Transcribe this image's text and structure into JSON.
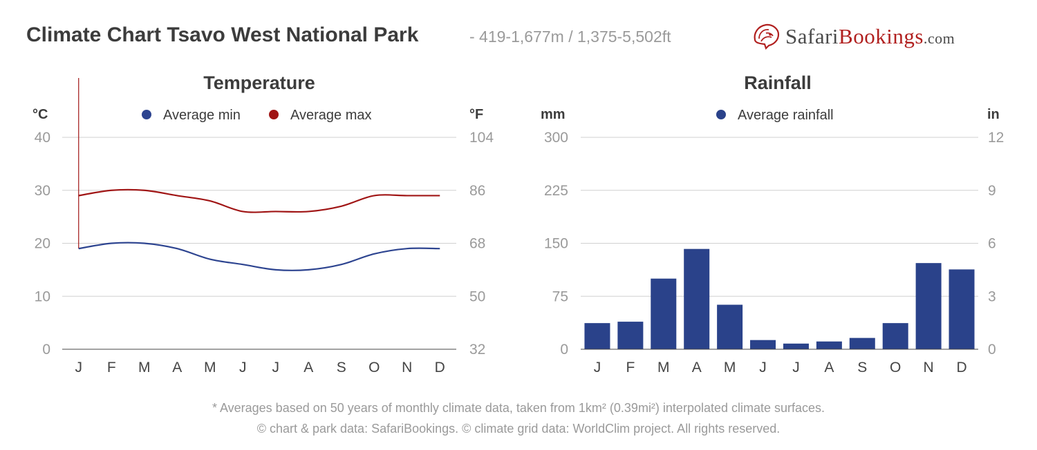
{
  "header": {
    "title": "Climate Chart Tsavo West National Park",
    "subtitle": "- 419-1,677m / 1,375-5,502ft",
    "brand": {
      "part1": "Safari",
      "part2": "Bookings",
      "part3": ".com"
    }
  },
  "colors": {
    "min": "#2d4490",
    "max": "#a01515",
    "bar": "#2a428a",
    "grid": "#d0d0d0",
    "axis_text": "#9a9a9a",
    "title_text": "#3c3c3c"
  },
  "chart_data": [
    {
      "type": "line",
      "title": "Temperature",
      "y_left_unit": "°C",
      "y_right_unit": "°F",
      "ylim": [
        0,
        40
      ],
      "y_left_ticks": [
        "40",
        "30",
        "20",
        "10",
        "0"
      ],
      "y_right_ticks": [
        "104",
        "86",
        "68",
        "50",
        "32"
      ],
      "legend_position": "top",
      "categories": [
        "J",
        "F",
        "M",
        "A",
        "M",
        "J",
        "J",
        "A",
        "S",
        "O",
        "N",
        "D"
      ],
      "series": [
        {
          "name": "Average min",
          "values": [
            19,
            20,
            20,
            19,
            17,
            16,
            15,
            15,
            16,
            18,
            19,
            19
          ]
        },
        {
          "name": "Average max",
          "values": [
            29,
            30,
            30,
            29,
            28,
            26,
            26,
            26,
            27,
            29,
            29,
            29
          ]
        }
      ]
    },
    {
      "type": "bar",
      "title": "Rainfall",
      "y_left_unit": "mm",
      "y_right_unit": "in",
      "ylim": [
        0,
        300
      ],
      "y_left_ticks": [
        "300",
        "225",
        "150",
        "75",
        "0"
      ],
      "y_right_ticks": [
        "12",
        "9",
        "6",
        "3",
        "0"
      ],
      "legend_position": "top",
      "categories": [
        "J",
        "F",
        "M",
        "A",
        "M",
        "J",
        "J",
        "A",
        "S",
        "O",
        "N",
        "D"
      ],
      "series": [
        {
          "name": "Average rainfall",
          "values": [
            37,
            39,
            100,
            142,
            63,
            13,
            8,
            11,
            16,
            37,
            122,
            113
          ]
        }
      ]
    }
  ],
  "footer": {
    "line1": "* Averages based on 50 years of monthly climate data, taken from 1km² (0.39mi²) interpolated climate surfaces.",
    "line2": "© chart & park data: SafariBookings. © climate grid data: WorldClim project. All rights reserved."
  }
}
